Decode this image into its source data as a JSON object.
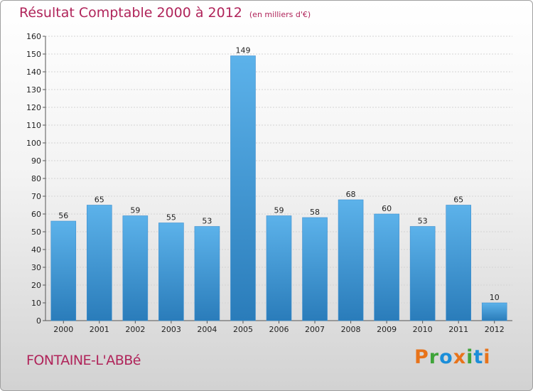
{
  "header": {
    "title": "Résultat Comptable 2000 à 2012",
    "subtitle": "(en milliers d'€)"
  },
  "footer": {
    "commune": "FONTAINE-L'ABBé",
    "logo": "Proxiti"
  },
  "colors": {
    "title": "#b0245a",
    "bar_top": "#5cb2ea",
    "bar_bottom": "#2a7cba",
    "logo": [
      "#e8731a",
      "#3fa43a",
      "#1b8ed9",
      "#e8731a",
      "#3fa43a",
      "#1b8ed9",
      "#e8731a"
    ]
  },
  "chart_data": {
    "type": "bar",
    "title": "Résultat Comptable 2000 à 2012",
    "subtitle": "(en milliers d'€)",
    "xlabel": "",
    "ylabel": "",
    "categories": [
      "2000",
      "2001",
      "2002",
      "2003",
      "2004",
      "2005",
      "2006",
      "2007",
      "2008",
      "2009",
      "2010",
      "2011",
      "2012"
    ],
    "values": [
      56,
      65,
      59,
      55,
      53,
      149,
      59,
      58,
      68,
      60,
      53,
      65,
      10
    ],
    "ylim": [
      0,
      160
    ],
    "yticks": [
      0,
      10,
      20,
      30,
      40,
      50,
      60,
      70,
      80,
      90,
      100,
      110,
      120,
      130,
      140,
      150,
      160
    ],
    "grid": true
  }
}
